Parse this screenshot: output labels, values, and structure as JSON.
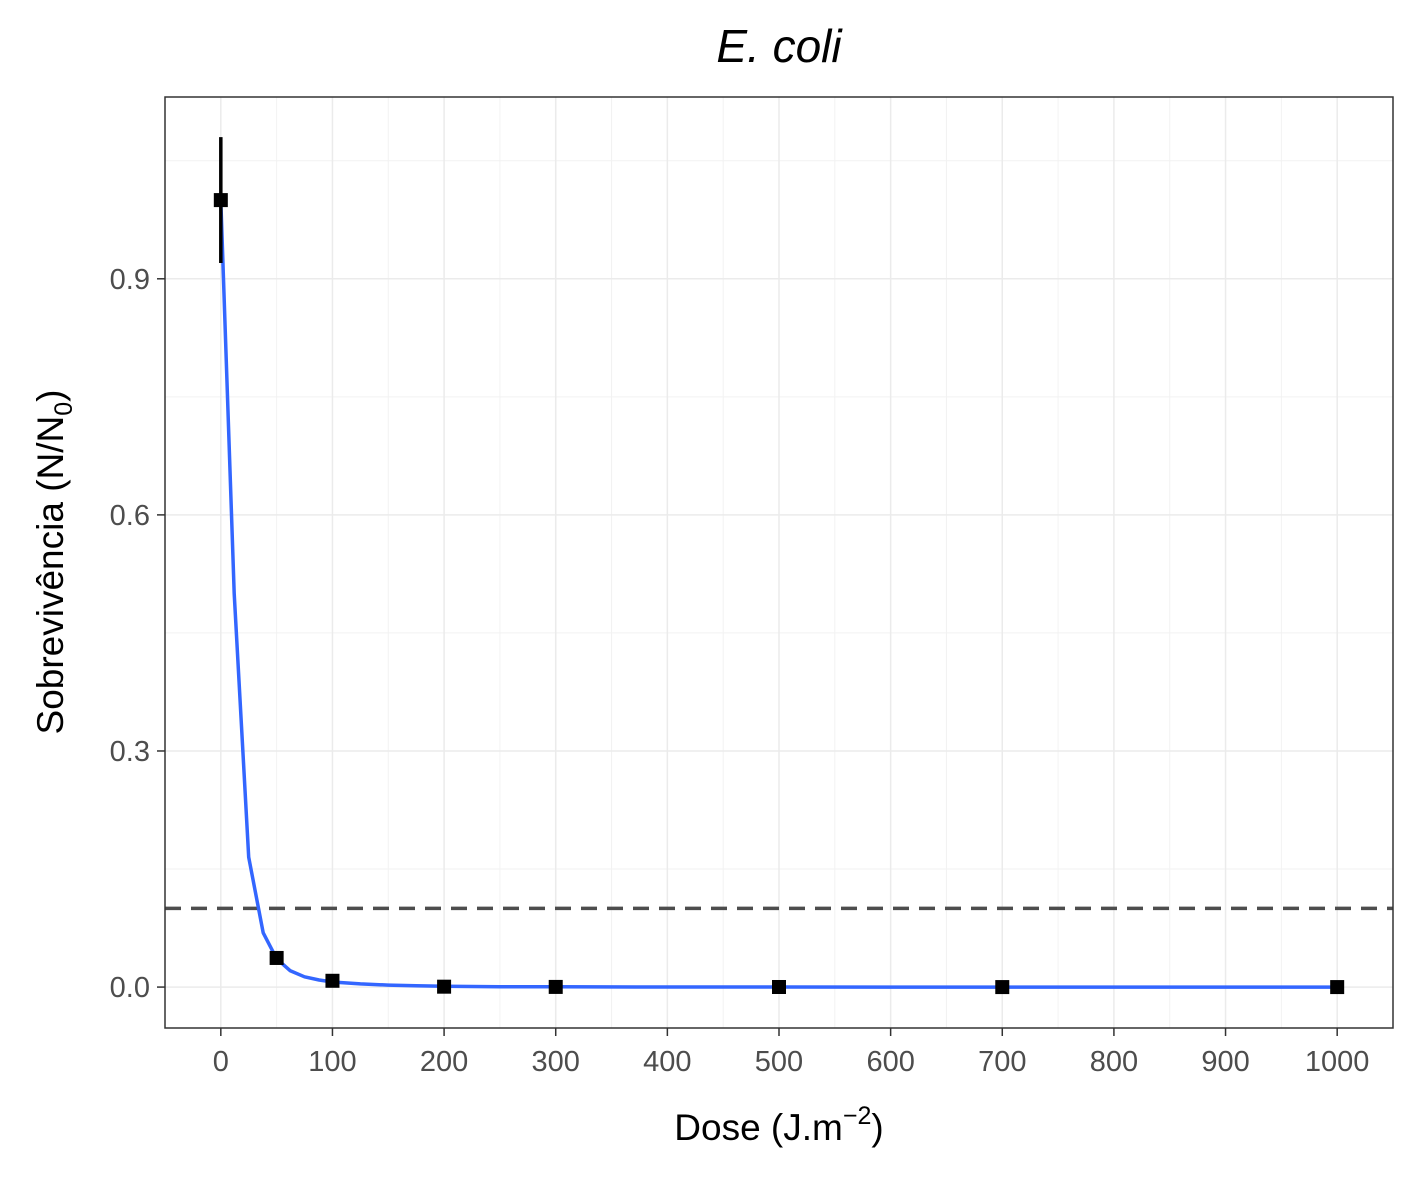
{
  "chart_data": {
    "type": "scatter",
    "title": "E. coli",
    "xlabel": {
      "text": "Dose (J.m",
      "superscript": "−2",
      "suffix": ")"
    },
    "ylabel": {
      "text": "Sobrevivência (N/N",
      "subscript": "0",
      "suffix": ")"
    },
    "xlim": [
      -50,
      1050
    ],
    "ylim": [
      -0.052,
      1.131
    ],
    "x_ticks": [
      0,
      100,
      200,
      300,
      400,
      500,
      600,
      700,
      800,
      900,
      1000
    ],
    "x_tick_labels": [
      "0",
      "100",
      "200",
      "300",
      "400",
      "500",
      "600",
      "700",
      "800",
      "900",
      "1000"
    ],
    "y_ticks": [
      0.0,
      0.3,
      0.6,
      0.9
    ],
    "y_tick_labels": [
      "0.0",
      "0.3",
      "0.6",
      "0.9"
    ],
    "grid": true,
    "points": {
      "x": [
        0,
        50,
        100,
        200,
        300,
        500,
        700,
        1000
      ],
      "y": [
        1.0,
        0.037,
        0.008,
        0.0005,
        0.0002,
        0.0001,
        0.0,
        0.0
      ],
      "error_low": [
        0.92,
        null,
        null,
        null,
        null,
        null,
        null,
        null
      ],
      "error_high": [
        1.08,
        null,
        null,
        null,
        null,
        null,
        null,
        null
      ],
      "color": "#000000"
    },
    "fit_curve": {
      "x": [
        0,
        12,
        25,
        38,
        50,
        62,
        75,
        88,
        100,
        125,
        150,
        175,
        200,
        250,
        300,
        400,
        500,
        600,
        700,
        800,
        900,
        1000
      ],
      "y": [
        1.0,
        0.5,
        0.165,
        0.069,
        0.036,
        0.021,
        0.013,
        0.009,
        0.0065,
        0.004,
        0.0025,
        0.0016,
        0.001,
        0.0005,
        0.0003,
        0.0001,
        5e-05,
        2e-05,
        1e-05,
        0.0,
        0.0,
        0.0
      ],
      "color": "#3366ff"
    },
    "reference_line": {
      "y": 0.1,
      "style": "dashed",
      "color": "#4d4d4d"
    }
  }
}
